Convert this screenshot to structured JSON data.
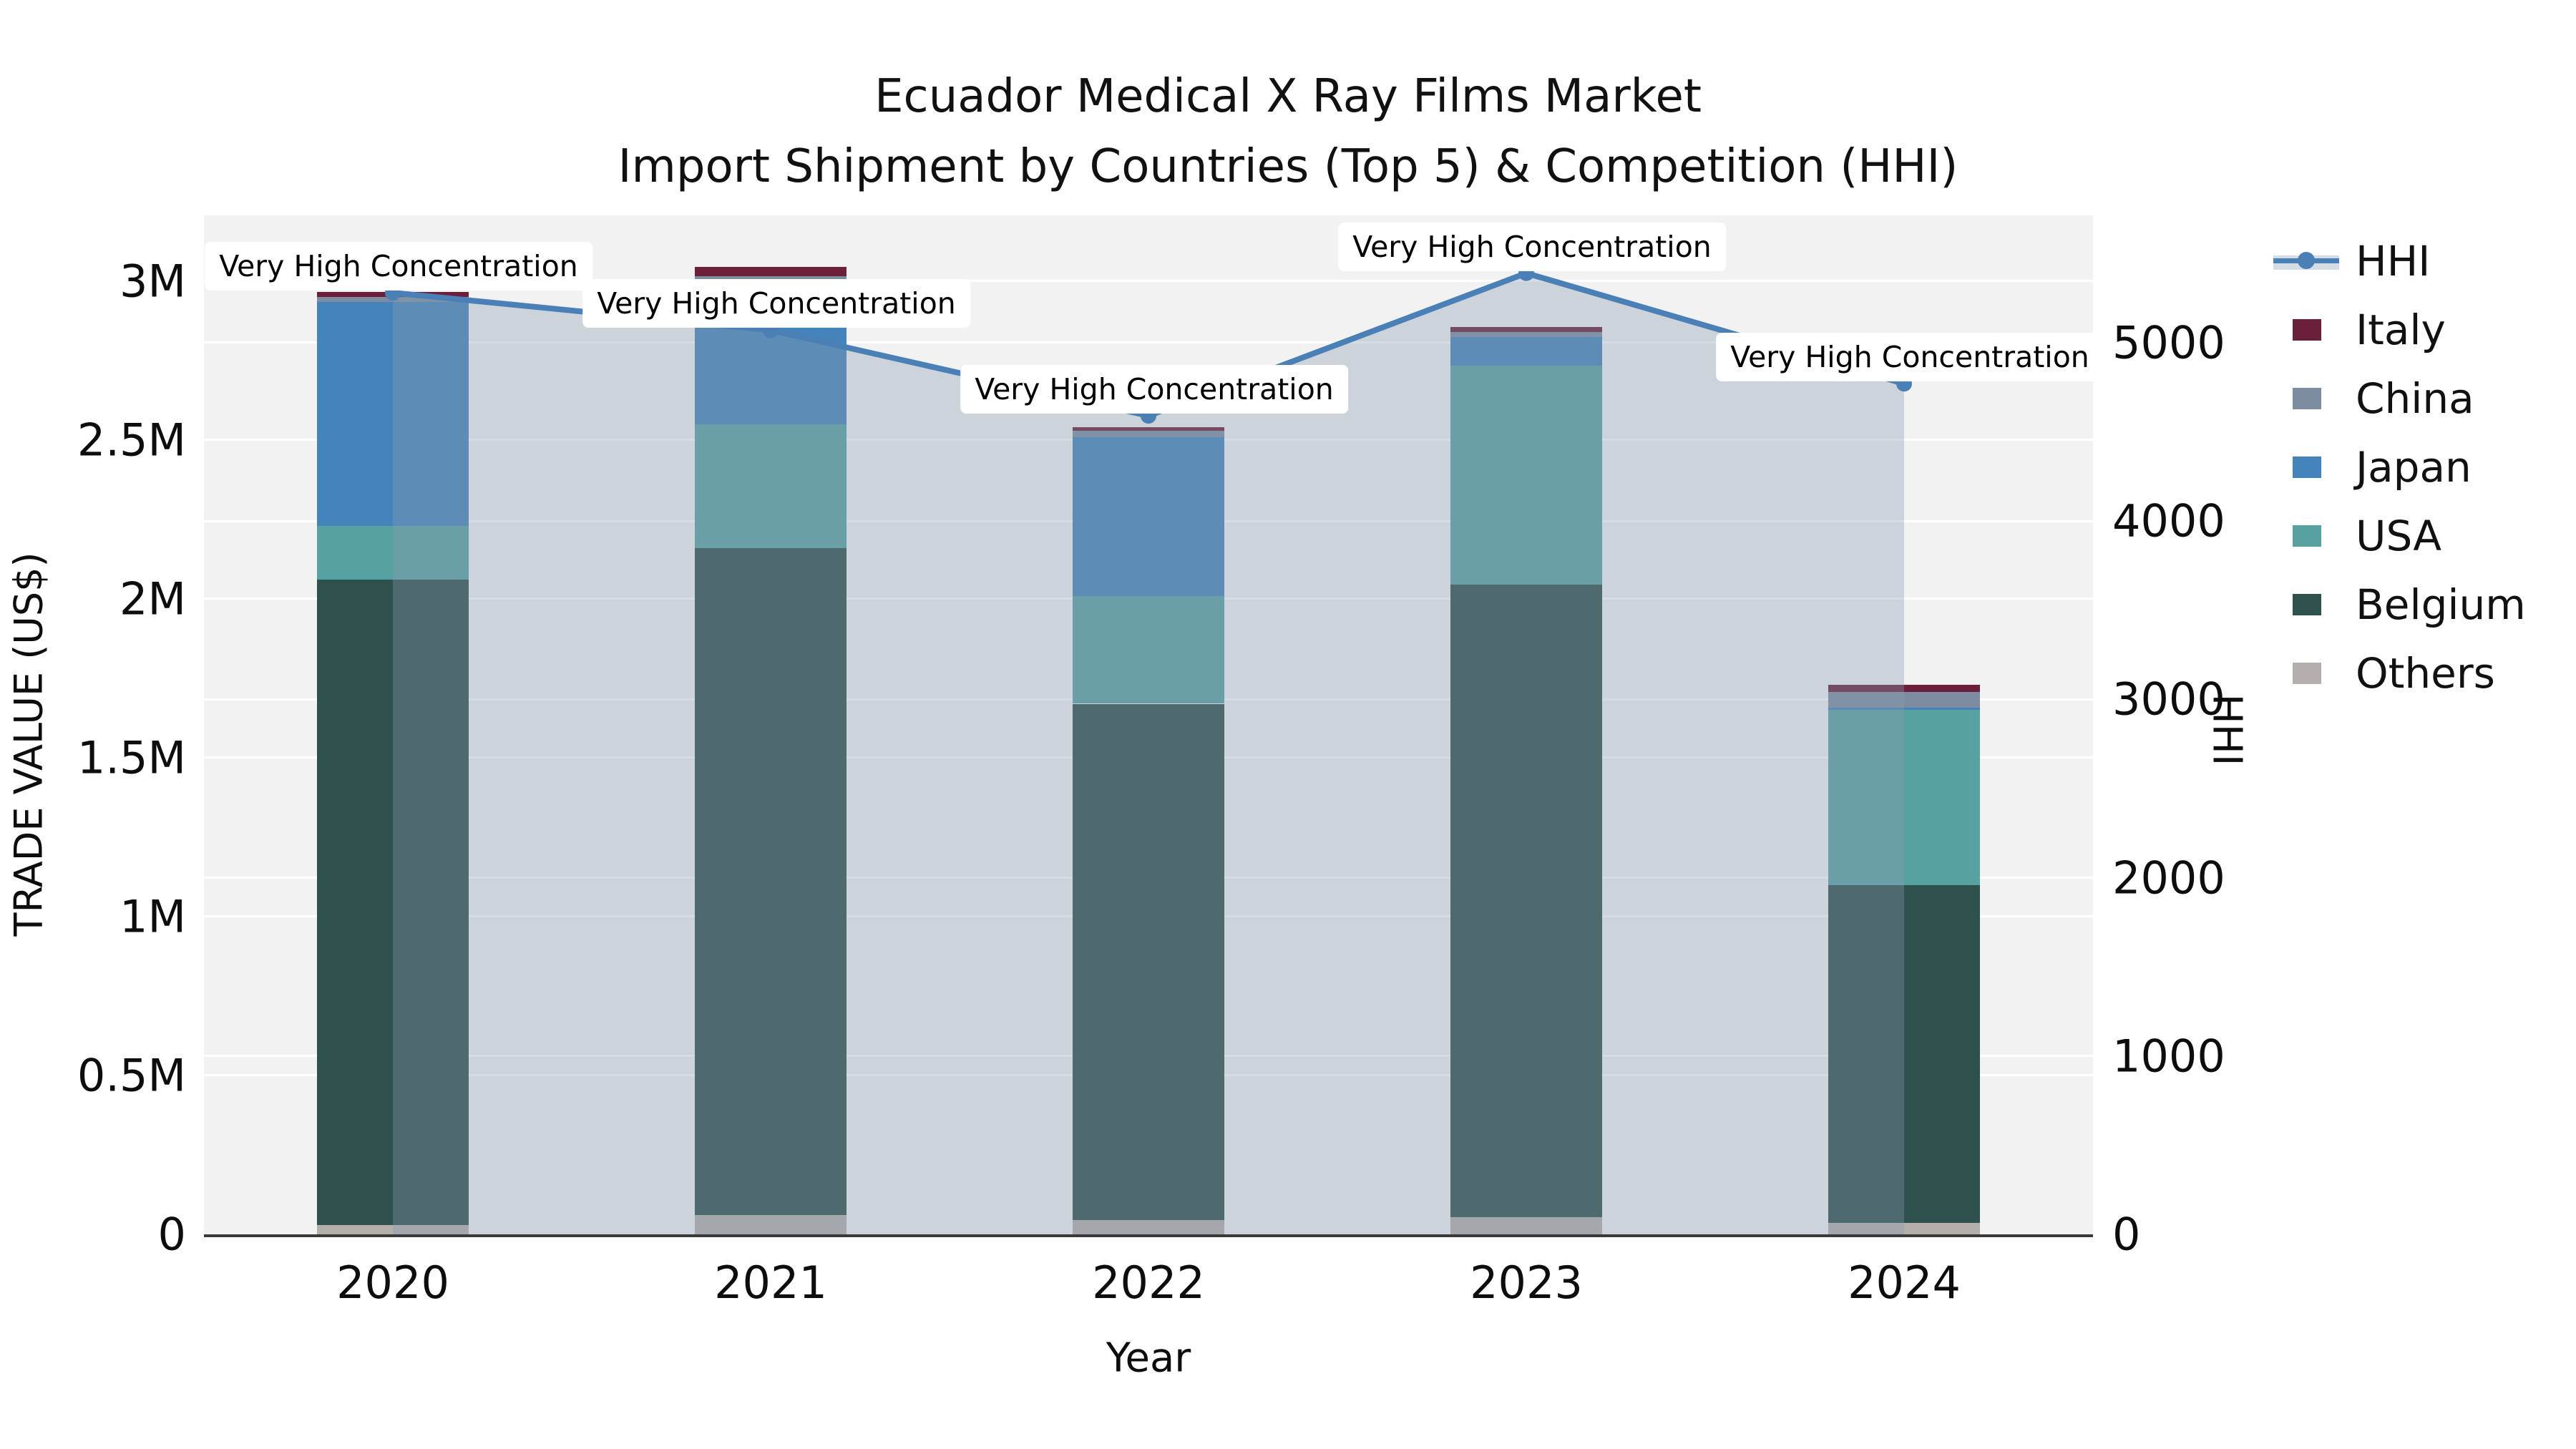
{
  "title": "Ecuador Medical X Ray Films Market",
  "subtitle": "Import Shipment by Countries (Top 5) & Competition (HHI)",
  "annotation_text": "Very High Concentration",
  "legend": [
    {
      "label": "HHI",
      "type": "line",
      "color": "#4a80b5"
    },
    {
      "label": "Italy",
      "type": "patch",
      "color": "#6b1f3b"
    },
    {
      "label": "China",
      "type": "patch",
      "color": "#7d8ca1"
    },
    {
      "label": "Japan",
      "type": "patch",
      "color": "#4584ba"
    },
    {
      "label": "USA",
      "type": "patch",
      "color": "#58a1a1"
    },
    {
      "label": "Belgium",
      "type": "patch",
      "color": "#2e514e"
    },
    {
      "label": "Others",
      "type": "patch",
      "color": "#b3b0ac"
    }
  ],
  "chart_data": {
    "type": "combo_stacked_bar_plus_line_dual_axis",
    "categories": [
      "2020",
      "2021",
      "2022",
      "2023",
      "2024"
    ],
    "xlabel": "Year",
    "ylabel_left": "TRADE VALUE (US$)",
    "ylabel_right": "HHI",
    "bar_series": [
      {
        "name": "Others",
        "color": "#b3b0ac",
        "values": [
          30000,
          60000,
          45000,
          55000,
          35000
        ]
      },
      {
        "name": "Belgium",
        "color": "#2e514e",
        "values": [
          2030000,
          2100000,
          1625000,
          1990000,
          1065000
        ]
      },
      {
        "name": "USA",
        "color": "#58a1a1",
        "values": [
          170000,
          390000,
          340000,
          690000,
          550000
        ]
      },
      {
        "name": "Japan",
        "color": "#4584ba",
        "values": [
          705000,
          440000,
          500000,
          90000,
          8000
        ]
      },
      {
        "name": "China",
        "color": "#7d8ca1",
        "values": [
          16000,
          25000,
          20000,
          16000,
          50000
        ]
      },
      {
        "name": "Italy",
        "color": "#6b1f3b",
        "values": [
          14000,
          30000,
          11000,
          15000,
          22000
        ]
      }
    ],
    "bar_totals_usd": [
      2965000,
      3045000,
      2541000,
      2856000,
      1730000
    ],
    "line_series": {
      "name": "HHI",
      "axis": "right",
      "color": "#4a80b5",
      "area_fill": "rgba(138,154,174,0.35)",
      "values": [
        5280,
        5070,
        4590,
        5390,
        4770
      ],
      "point_annotation": "Very High Concentration"
    },
    "yticks_left": [
      {
        "label": "0",
        "value": 0
      },
      {
        "label": "0.5M",
        "value": 500000
      },
      {
        "label": "1M",
        "value": 1000000
      },
      {
        "label": "1.5M",
        "value": 1500000
      },
      {
        "label": "2M",
        "value": 2000000
      },
      {
        "label": "2.5M",
        "value": 2500000
      },
      {
        "label": "3M",
        "value": 3000000
      }
    ],
    "yticks_right": [
      {
        "label": "0",
        "value": 0
      },
      {
        "label": "1000",
        "value": 1000
      },
      {
        "label": "2000",
        "value": 2000
      },
      {
        "label": "3000",
        "value": 3000
      },
      {
        "label": "4000",
        "value": 4000
      },
      {
        "label": "5000",
        "value": 5000
      }
    ],
    "ylim_left_top": 3207000,
    "ylim_right_top": 5714,
    "grid": true,
    "plot_bg": "#f2f2f2",
    "grid_color": "#ffffff",
    "axis_line_color": "#3a3a3a",
    "legend_position": "outside-top-right"
  }
}
